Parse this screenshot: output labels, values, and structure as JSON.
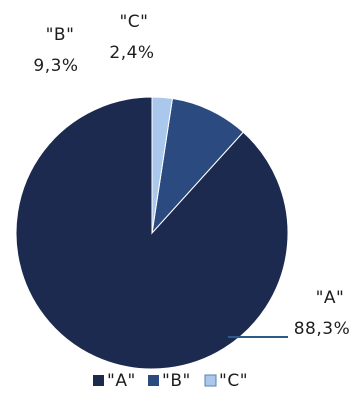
{
  "chart_data": {
    "type": "pie",
    "categories": [
      "\"A\"",
      "\"B\"",
      "\"C\""
    ],
    "values": [
      88.3,
      9.3,
      2.4
    ],
    "data_labels": [
      "88,3%",
      "9,3%",
      "2,4%"
    ],
    "colors": [
      "#1b2a4e",
      "#2a4a80",
      "#a9c8ec"
    ],
    "start_angle_deg": 0,
    "direction": "counterclockwise",
    "legend": {
      "position": "bottom",
      "entries": [
        "\"A\"",
        "\"B\"",
        "\"C\""
      ]
    }
  }
}
